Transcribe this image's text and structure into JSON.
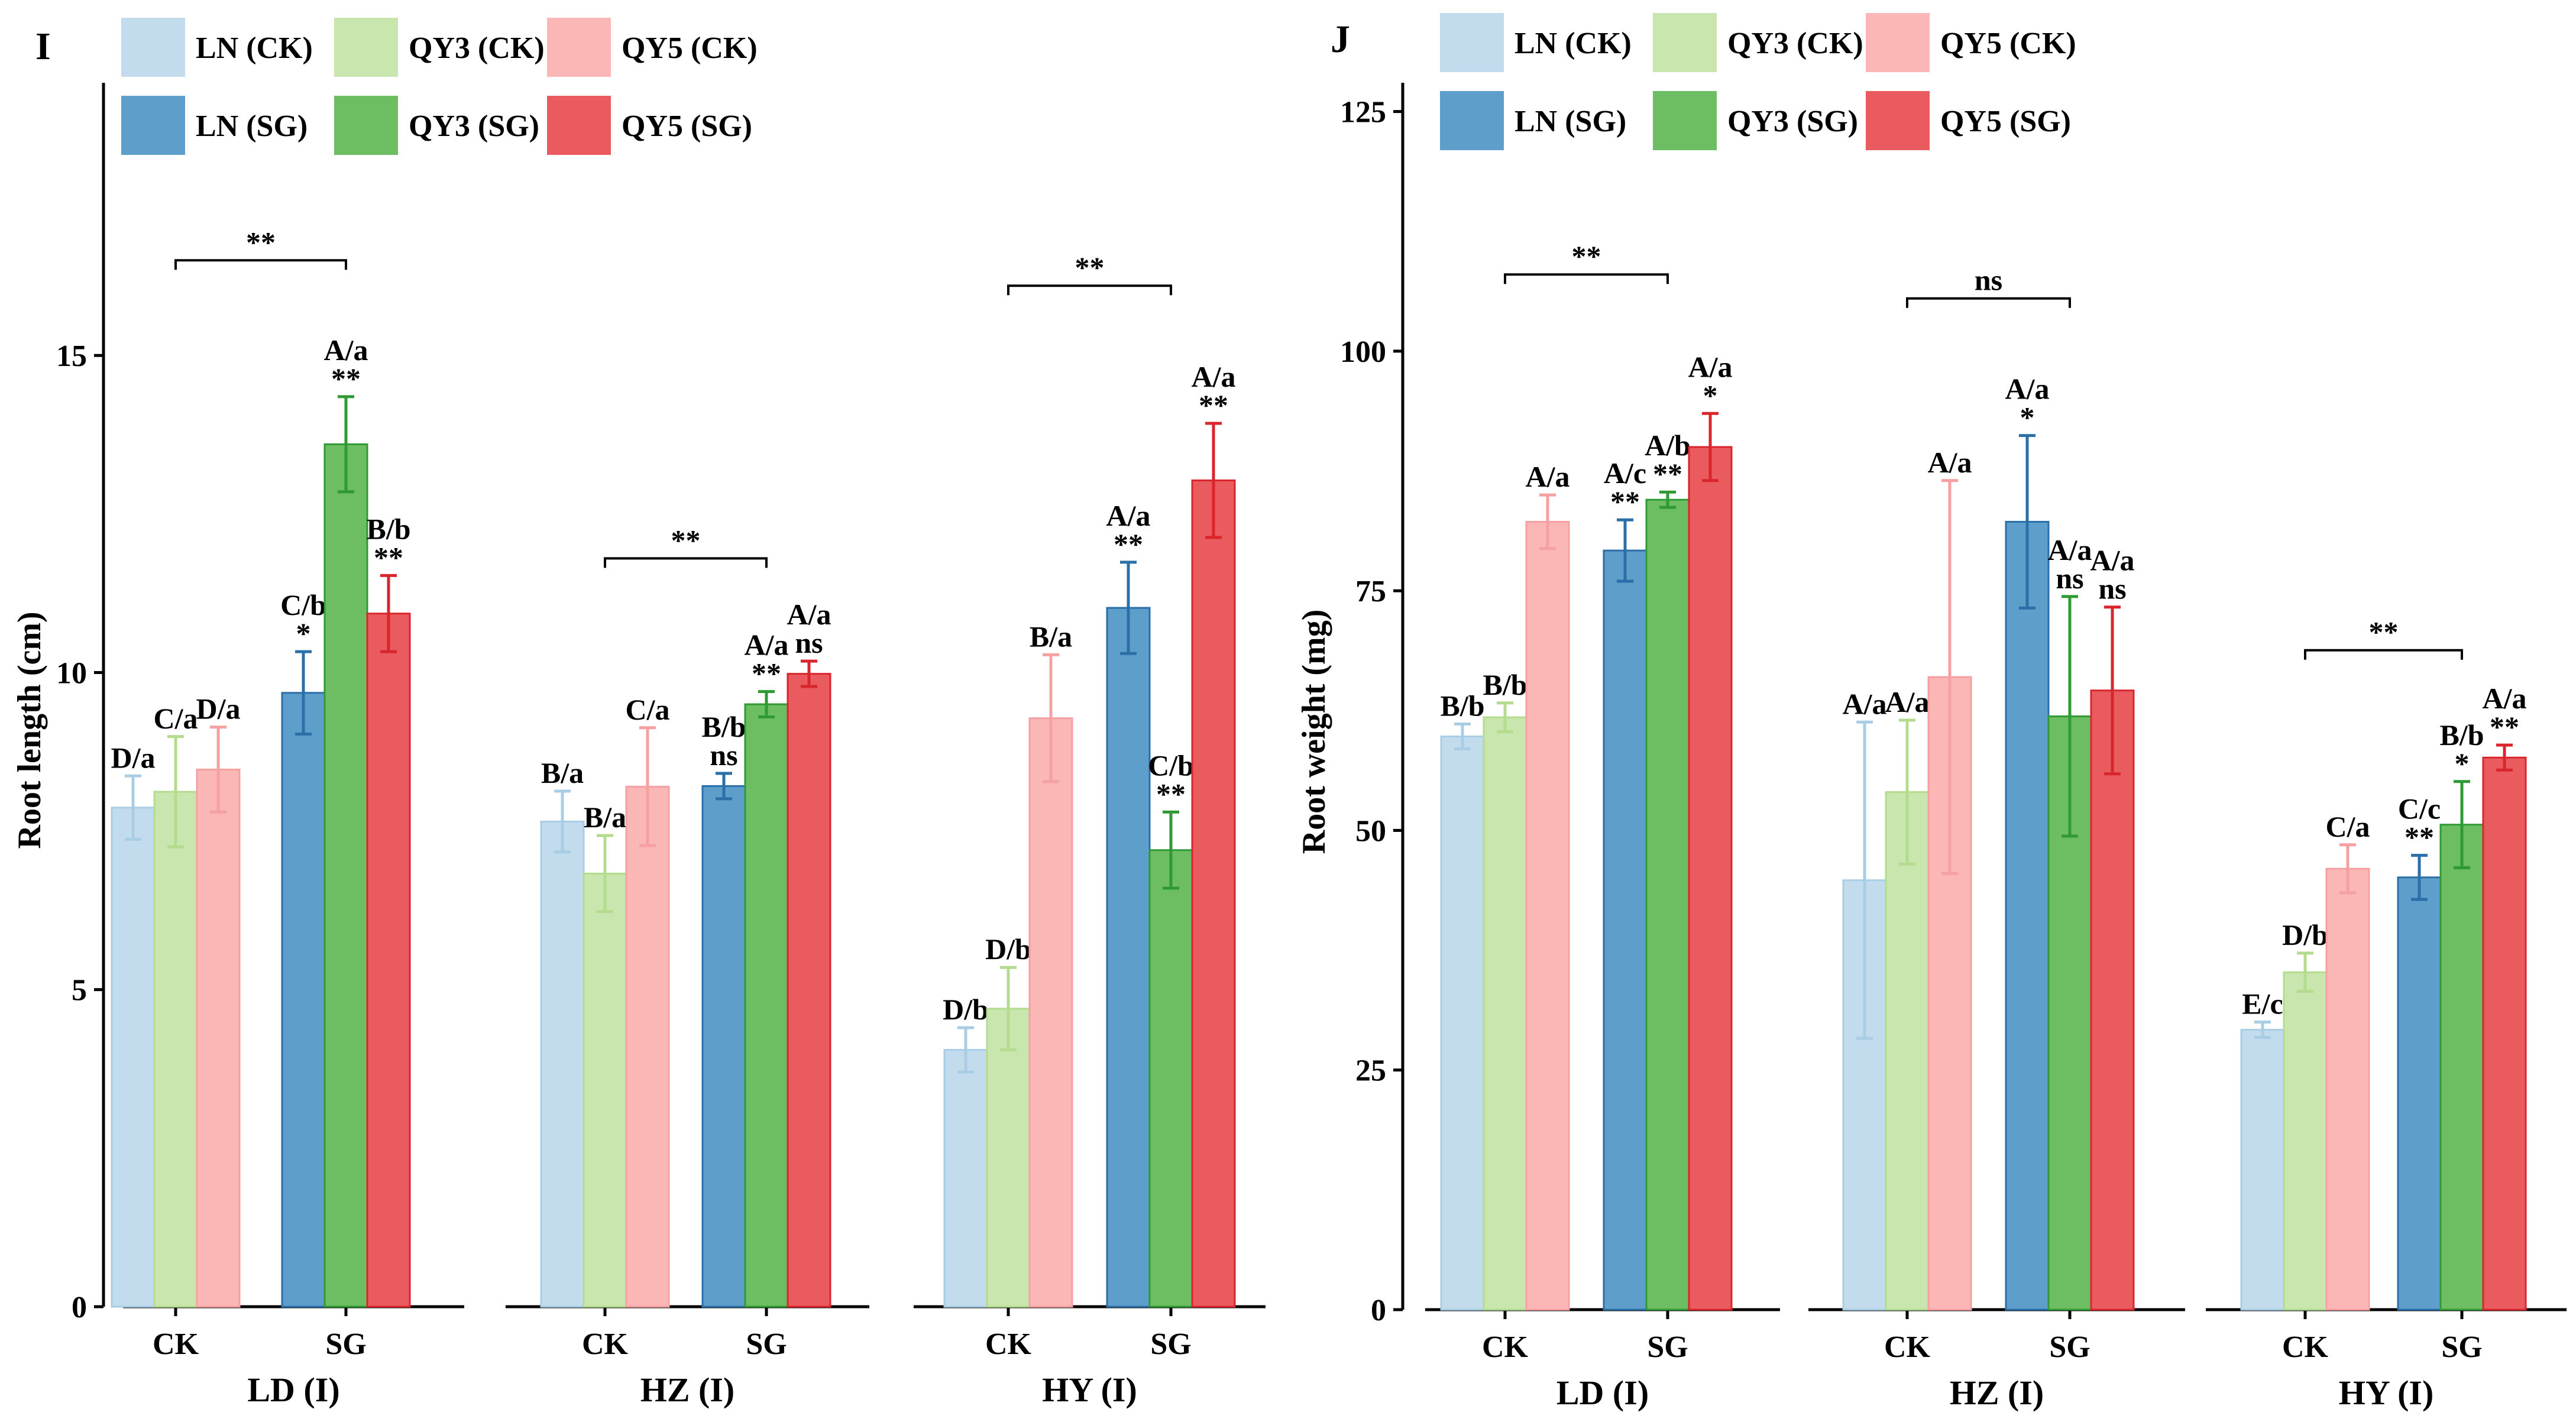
{
  "colors": {
    "LN (CK)": "#c2dced",
    "QY3 (CK)": "#c8e6ae",
    "QY5 (CK)": "#fbb7b5",
    "LN (SG)": "#5e9ecb",
    "QY3 (SG)": "#6dbd63",
    "QY5 (SG)": "#ea5b5f",
    "err_LN (CK)": "#a9cde4",
    "err_QY3 (CK)": "#b3dc8e",
    "err_QY5 (CK)": "#f6a0a2",
    "err_LN (SG)": "#2a6fa8",
    "err_QY3 (SG)": "#2f9a33",
    "err_QY5 (SG)": "#d8262c"
  },
  "chart_data": [
    {
      "type": "bar",
      "panel": "I",
      "ylabel": "Root length (cm)",
      "ylim": [
        0,
        19.3
      ],
      "yticks": [
        0,
        5,
        10,
        15
      ],
      "legend": [
        "LN (CK)",
        "QY3 (CK)",
        "QY5 (CK)",
        "LN (SG)",
        "QY3 (SG)",
        "QY5 (SG)"
      ],
      "groups": [
        {
          "title": "LD (I)",
          "categories": [
            "CK",
            "SG"
          ],
          "bars": {
            "CK": [
              {
                "series": "LN (CK)",
                "value": 7.87,
                "err": 0.5,
                "label": "D/a",
                "sig": ""
              },
              {
                "series": "QY3 (CK)",
                "value": 8.12,
                "err": 0.87,
                "label": "C/a",
                "sig": ""
              },
              {
                "series": "QY5 (CK)",
                "value": 8.47,
                "err": 0.67,
                "label": "D/a",
                "sig": ""
              }
            ],
            "SG": [
              {
                "series": "LN (SG)",
                "value": 9.68,
                "err": 0.65,
                "label": "C/b",
                "sig": "*"
              },
              {
                "series": "QY3 (SG)",
                "value": 13.6,
                "err": 0.75,
                "label": "A/a",
                "sig": "**"
              },
              {
                "series": "QY5 (SG)",
                "value": 10.93,
                "err": 0.6,
                "label": "B/b",
                "sig": "**"
              }
            ]
          },
          "bracket": {
            "label": "**",
            "y": 16.5
          }
        },
        {
          "title": "HZ (I)",
          "categories": [
            "CK",
            "SG"
          ],
          "bars": {
            "CK": [
              {
                "series": "LN (CK)",
                "value": 7.65,
                "err": 0.48,
                "label": "B/a",
                "sig": ""
              },
              {
                "series": "QY3 (CK)",
                "value": 6.83,
                "err": 0.6,
                "label": "B/a",
                "sig": ""
              },
              {
                "series": "QY5 (CK)",
                "value": 8.2,
                "err": 0.93,
                "label": "C/a",
                "sig": ""
              }
            ],
            "SG": [
              {
                "series": "LN (SG)",
                "value": 8.21,
                "err": 0.2,
                "label": "B/b",
                "sig": "ns"
              },
              {
                "series": "QY3 (SG)",
                "value": 9.5,
                "err": 0.2,
                "label": "A/a",
                "sig": "**"
              },
              {
                "series": "QY5 (SG)",
                "value": 9.98,
                "err": 0.2,
                "label": "A/a",
                "sig": "ns"
              }
            ]
          },
          "bracket": {
            "label": "**",
            "y": 11.8
          }
        },
        {
          "title": "HY (I)",
          "categories": [
            "CK",
            "SG"
          ],
          "bars": {
            "CK": [
              {
                "series": "LN (CK)",
                "value": 4.05,
                "err": 0.35,
                "label": "D/b",
                "sig": ""
              },
              {
                "series": "QY3 (CK)",
                "value": 4.7,
                "err": 0.65,
                "label": "D/b",
                "sig": ""
              },
              {
                "series": "QY5 (CK)",
                "value": 9.28,
                "err": 1.0,
                "label": "B/a",
                "sig": ""
              }
            ],
            "SG": [
              {
                "series": "LN (SG)",
                "value": 11.02,
                "err": 0.72,
                "label": "A/a",
                "sig": "**"
              },
              {
                "series": "QY3 (SG)",
                "value": 7.2,
                "err": 0.6,
                "label": "C/b",
                "sig": "**"
              },
              {
                "series": "QY5 (SG)",
                "value": 13.03,
                "err": 0.9,
                "label": "A/a",
                "sig": "**"
              }
            ]
          },
          "bracket": {
            "label": "**",
            "y": 16.1
          }
        }
      ]
    },
    {
      "type": "bar",
      "panel": "J",
      "ylabel": "Root weight (mg)",
      "ylim": [
        0,
        128
      ],
      "yticks": [
        0,
        25,
        50,
        75,
        100,
        125
      ],
      "legend": [
        "LN (CK)",
        "QY3 (CK)",
        "QY5 (CK)",
        "LN (SG)",
        "QY3 (SG)",
        "QY5 (SG)"
      ],
      "groups": [
        {
          "title": "LD (I)",
          "categories": [
            "CK",
            "SG"
          ],
          "bars": {
            "CK": [
              {
                "series": "LN (CK)",
                "value": 59.8,
                "err": 1.3,
                "label": "B/b",
                "sig": ""
              },
              {
                "series": "QY3 (CK)",
                "value": 61.8,
                "err": 1.5,
                "label": "B/b",
                "sig": ""
              },
              {
                "series": "QY5 (CK)",
                "value": 82.2,
                "err": 2.8,
                "label": "A/a",
                "sig": ""
              }
            ],
            "SG": [
              {
                "series": "LN (SG)",
                "value": 79.2,
                "err": 3.2,
                "label": "A/c",
                "sig": "**"
              },
              {
                "series": "QY3 (SG)",
                "value": 84.5,
                "err": 0.8,
                "label": "A/b",
                "sig": "**"
              },
              {
                "series": "QY5 (SG)",
                "value": 90.0,
                "err": 3.5,
                "label": "A/a",
                "sig": "*"
              }
            ]
          },
          "bracket": {
            "label": "**",
            "y": 108
          }
        },
        {
          "title": "HZ (I)",
          "categories": [
            "CK",
            "SG"
          ],
          "bars": {
            "CK": [
              {
                "series": "LN (CK)",
                "value": 44.8,
                "err": 16.5,
                "label": "A/a",
                "sig": ""
              },
              {
                "series": "QY3 (CK)",
                "value": 54.0,
                "err": 7.5,
                "label": "A/a",
                "sig": ""
              },
              {
                "series": "QY5 (CK)",
                "value": 66.0,
                "err": 20.5,
                "label": "A/a",
                "sig": ""
              }
            ],
            "SG": [
              {
                "series": "LN (SG)",
                "value": 82.2,
                "err": 9.0,
                "label": "A/a",
                "sig": "*"
              },
              {
                "series": "QY3 (SG)",
                "value": 61.9,
                "err": 12.5,
                "label": "A/a",
                "sig": "ns"
              },
              {
                "series": "QY5 (SG)",
                "value": 64.6,
                "err": 8.7,
                "label": "A/a",
                "sig": "ns"
              }
            ]
          },
          "bracket": {
            "label": "ns",
            "y": 105.5
          }
        },
        {
          "title": "HY (I)",
          "categories": [
            "CK",
            "SG"
          ],
          "bars": {
            "CK": [
              {
                "series": "LN (CK)",
                "value": 29.2,
                "err": 0.8,
                "label": "E/c",
                "sig": ""
              },
              {
                "series": "QY3 (CK)",
                "value": 35.2,
                "err": 2.0,
                "label": "D/b",
                "sig": ""
              },
              {
                "series": "QY5 (CK)",
                "value": 46.0,
                "err": 2.5,
                "label": "C/a",
                "sig": ""
              }
            ],
            "SG": [
              {
                "series": "LN (SG)",
                "value": 45.1,
                "err": 2.3,
                "label": "C/c",
                "sig": "**"
              },
              {
                "series": "QY3 (SG)",
                "value": 50.6,
                "err": 4.5,
                "label": "B/b",
                "sig": "*"
              },
              {
                "series": "QY5 (SG)",
                "value": 57.6,
                "err": 1.3,
                "label": "A/a",
                "sig": "**"
              }
            ]
          },
          "bracket": {
            "label": "**",
            "y": 68.8
          }
        }
      ]
    }
  ]
}
